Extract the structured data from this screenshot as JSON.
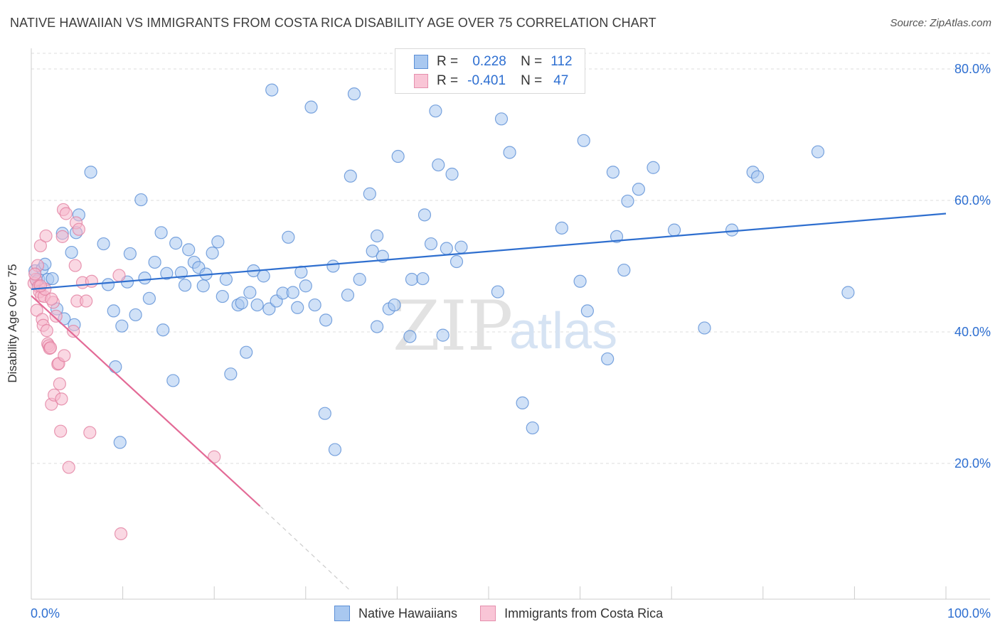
{
  "title": "NATIVE HAWAIIAN VS IMMIGRANTS FROM COSTA RICA DISABILITY AGE OVER 75 CORRELATION CHART",
  "source": "Source: ZipAtlas.com",
  "watermark": {
    "zip": "ZIP",
    "atlas": "atlas"
  },
  "legend": {
    "rows": [
      {
        "r_label": "R =",
        "r_value": "0.228",
        "n_label": "N =",
        "n_value": "112"
      },
      {
        "r_label": "R =",
        "r_value": "-0.401",
        "n_label": "N =",
        "n_value": "47"
      }
    ]
  },
  "colors": {
    "blue_fill": "#a9c8f0",
    "blue_stroke": "#5b8fd6",
    "blue_line": "#2f6fcf",
    "pink_fill": "#f6b8cc",
    "pink_stroke": "#e27fa0",
    "pink_line": "#e36a96",
    "tick_text": "#2e6fd1",
    "grid": "#dddddd"
  },
  "chart_data": {
    "type": "scatter",
    "title": "NATIVE HAWAIIAN VS IMMIGRANTS FROM COSTA RICA DISABILITY AGE OVER 75 CORRELATION CHART",
    "xlabel": "",
    "ylabel": "Disability Age Over 75",
    "xlim": [
      0,
      100
    ],
    "ylim": [
      0,
      85
    ],
    "x_tick_labels": [
      "0.0%",
      "100.0%"
    ],
    "y_ticks": [
      20,
      40,
      60,
      80
    ],
    "y_tick_labels": [
      "20.0%",
      "40.0%",
      "60.0%",
      "80.0%"
    ],
    "grid": "horizontal dashed",
    "legend_position": "bottom",
    "series": [
      {
        "name": "Native Hawaiians",
        "color": "#a9c8f0",
        "trend": {
          "x0": 0,
          "y0": 46.5,
          "x1": 100,
          "y1": 58.0
        },
        "points": [
          [
            0.4,
            49.3
          ],
          [
            0.6,
            47.7
          ],
          [
            0.8,
            48.0
          ],
          [
            1.2,
            49.6
          ],
          [
            1.5,
            50.3
          ],
          [
            1.8,
            48.0
          ],
          [
            2.3,
            48.1
          ],
          [
            2.8,
            43.5
          ],
          [
            3.4,
            55.0
          ],
          [
            3.6,
            42.0
          ],
          [
            4.4,
            52.1
          ],
          [
            4.7,
            41.1
          ],
          [
            4.9,
            55.1
          ],
          [
            5.2,
            57.8
          ],
          [
            6.5,
            64.3
          ],
          [
            7.9,
            53.4
          ],
          [
            8.4,
            47.2
          ],
          [
            9.0,
            43.2
          ],
          [
            9.2,
            34.7
          ],
          [
            9.7,
            23.2
          ],
          [
            9.9,
            40.9
          ],
          [
            10.5,
            47.6
          ],
          [
            10.8,
            51.9
          ],
          [
            11.4,
            42.6
          ],
          [
            12.0,
            60.1
          ],
          [
            12.4,
            48.2
          ],
          [
            12.9,
            45.1
          ],
          [
            13.5,
            50.6
          ],
          [
            14.2,
            55.1
          ],
          [
            14.4,
            40.3
          ],
          [
            14.8,
            48.9
          ],
          [
            15.5,
            32.6
          ],
          [
            15.8,
            53.5
          ],
          [
            16.4,
            49.0
          ],
          [
            16.8,
            47.1
          ],
          [
            17.2,
            52.5
          ],
          [
            17.8,
            50.6
          ],
          [
            18.3,
            49.8
          ],
          [
            18.8,
            47.0
          ],
          [
            19.1,
            48.8
          ],
          [
            19.8,
            52.0
          ],
          [
            20.4,
            53.7
          ],
          [
            20.9,
            45.4
          ],
          [
            21.3,
            48.0
          ],
          [
            21.8,
            33.6
          ],
          [
            22.6,
            44.1
          ],
          [
            23.0,
            44.4
          ],
          [
            23.5,
            36.9
          ],
          [
            23.9,
            46.0
          ],
          [
            24.3,
            49.3
          ],
          [
            24.7,
            44.1
          ],
          [
            25.4,
            48.5
          ],
          [
            26.0,
            43.5
          ],
          [
            26.3,
            76.8
          ],
          [
            26.8,
            44.7
          ],
          [
            27.5,
            45.9
          ],
          [
            28.1,
            54.4
          ],
          [
            28.6,
            46.0
          ],
          [
            29.1,
            43.7
          ],
          [
            29.5,
            49.1
          ],
          [
            30.0,
            47.0
          ],
          [
            30.6,
            74.2
          ],
          [
            31.0,
            44.1
          ],
          [
            32.2,
            41.8
          ],
          [
            32.1,
            27.6
          ],
          [
            33.0,
            50.0
          ],
          [
            33.2,
            22.1
          ],
          [
            34.6,
            45.6
          ],
          [
            34.9,
            63.7
          ],
          [
            35.3,
            76.2
          ],
          [
            35.9,
            48.0
          ],
          [
            37.0,
            61.0
          ],
          [
            37.3,
            52.3
          ],
          [
            37.8,
            54.6
          ],
          [
            37.8,
            40.8
          ],
          [
            38.4,
            51.5
          ],
          [
            39.1,
            43.5
          ],
          [
            39.7,
            44.1
          ],
          [
            40.1,
            66.7
          ],
          [
            41.4,
            39.3
          ],
          [
            41.6,
            48.0
          ],
          [
            42.8,
            48.1
          ],
          [
            43.0,
            57.8
          ],
          [
            43.7,
            53.4
          ],
          [
            44.2,
            73.6
          ],
          [
            44.5,
            65.4
          ],
          [
            45.0,
            39.5
          ],
          [
            45.4,
            52.7
          ],
          [
            46.0,
            64.0
          ],
          [
            46.5,
            50.7
          ],
          [
            47.0,
            52.9
          ],
          [
            51.0,
            46.1
          ],
          [
            51.4,
            72.4
          ],
          [
            52.3,
            67.3
          ],
          [
            53.7,
            29.2
          ],
          [
            54.8,
            25.4
          ],
          [
            58.0,
            55.8
          ],
          [
            60.0,
            47.7
          ],
          [
            60.4,
            69.1
          ],
          [
            60.8,
            43.2
          ],
          [
            63.0,
            35.9
          ],
          [
            63.6,
            64.3
          ],
          [
            64.0,
            54.5
          ],
          [
            64.8,
            49.4
          ],
          [
            65.2,
            59.9
          ],
          [
            66.4,
            61.7
          ],
          [
            68.0,
            65.0
          ],
          [
            70.3,
            55.5
          ],
          [
            73.6,
            40.6
          ],
          [
            76.6,
            55.5
          ],
          [
            78.9,
            64.3
          ],
          [
            79.4,
            63.6
          ],
          [
            89.3,
            46.0
          ],
          [
            86.0,
            67.4
          ]
        ]
      },
      {
        "name": "Immigrants from Costa Rica",
        "color": "#f6b8cc",
        "trend": {
          "x0": 0,
          "y0": 45.5,
          "x1": 25.0,
          "y1": 13.5,
          "dash_to_x": 35.0,
          "dash_to_y": 0.5
        },
        "points": [
          [
            0.3,
            47.4
          ],
          [
            0.5,
            48.0
          ],
          [
            0.6,
            43.3
          ],
          [
            0.7,
            50.1
          ],
          [
            0.8,
            46.9
          ],
          [
            0.9,
            46.1
          ],
          [
            1.0,
            53.1
          ],
          [
            1.1,
            45.5
          ],
          [
            1.2,
            41.9
          ],
          [
            1.3,
            41.0
          ],
          [
            1.4,
            45.4
          ],
          [
            1.6,
            54.6
          ],
          [
            1.7,
            40.2
          ],
          [
            1.8,
            38.2
          ],
          [
            1.9,
            37.9
          ],
          [
            2.0,
            37.5
          ],
          [
            2.1,
            37.6
          ],
          [
            2.2,
            29.0
          ],
          [
            2.4,
            44.5
          ],
          [
            2.5,
            30.4
          ],
          [
            2.7,
            42.4
          ],
          [
            2.9,
            35.1
          ],
          [
            3.0,
            35.2
          ],
          [
            3.1,
            32.1
          ],
          [
            3.2,
            24.9
          ],
          [
            3.3,
            29.8
          ],
          [
            3.4,
            54.5
          ],
          [
            3.5,
            58.6
          ],
          [
            3.6,
            36.4
          ],
          [
            3.8,
            58.0
          ],
          [
            4.1,
            19.4
          ],
          [
            4.6,
            40.1
          ],
          [
            4.8,
            50.1
          ],
          [
            4.9,
            56.6
          ],
          [
            5.0,
            44.7
          ],
          [
            5.2,
            55.6
          ],
          [
            5.6,
            47.5
          ],
          [
            6.0,
            44.7
          ],
          [
            6.4,
            24.7
          ],
          [
            6.6,
            47.7
          ],
          [
            9.6,
            48.6
          ],
          [
            9.8,
            9.3
          ],
          [
            20.0,
            21.0
          ],
          [
            1.5,
            46.5
          ],
          [
            2.2,
            45.0
          ],
          [
            0.4,
            48.8
          ],
          [
            1.0,
            47.0
          ]
        ]
      }
    ]
  },
  "bottom_legend": [
    {
      "label": "Native Hawaiians"
    },
    {
      "label": "Immigrants from Costa Rica"
    }
  ]
}
